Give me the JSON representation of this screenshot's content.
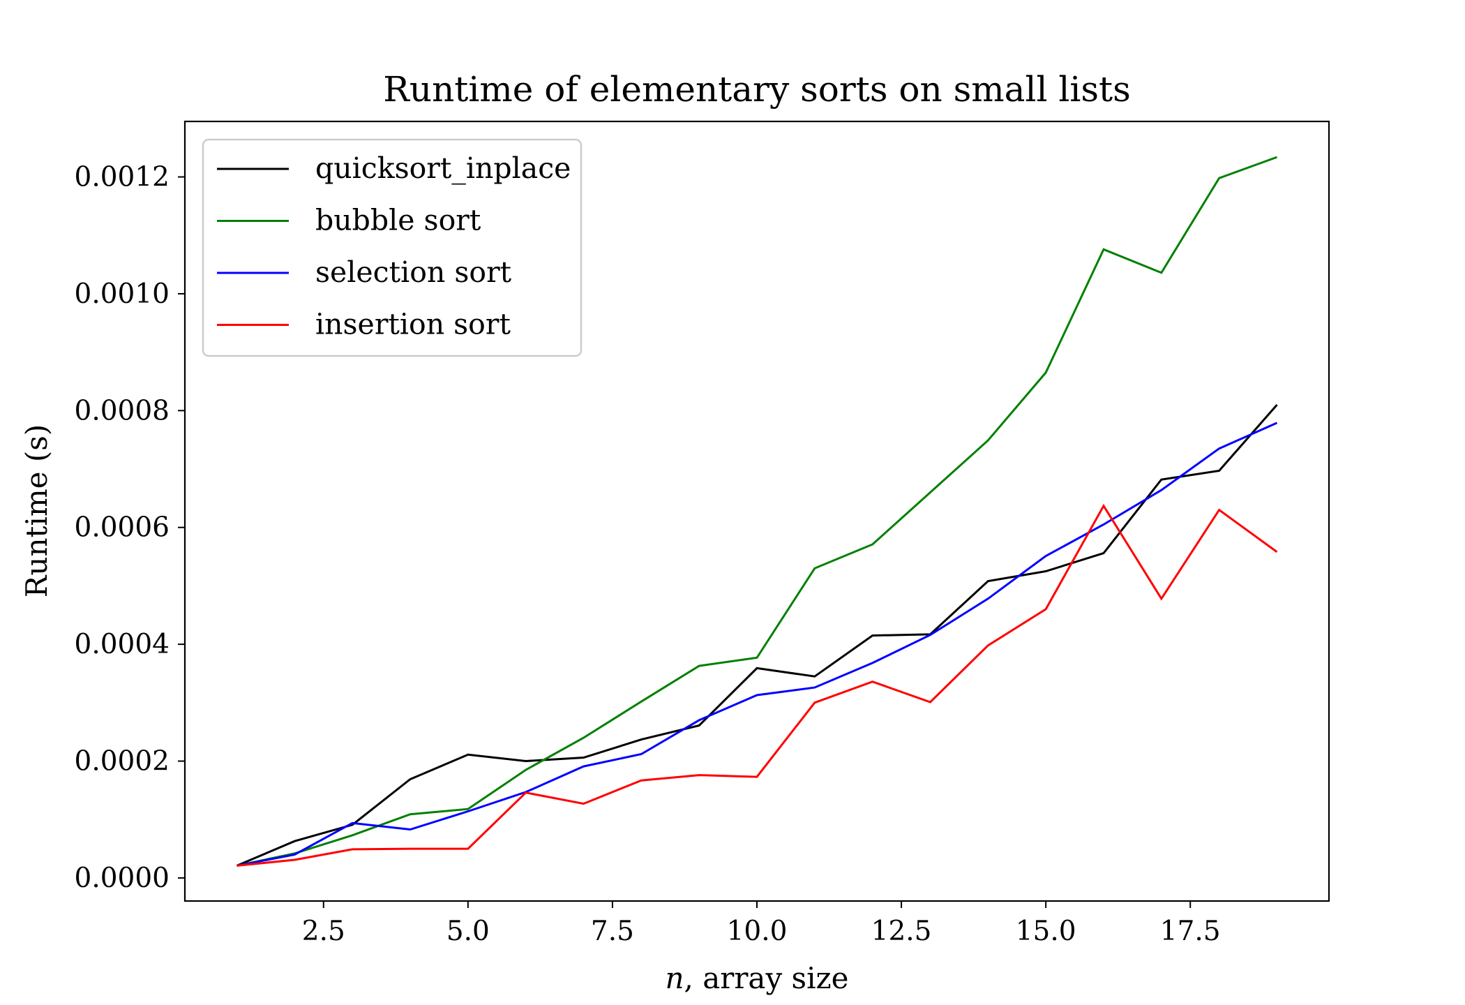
{
  "chart_data": {
    "type": "line",
    "title": "Runtime of elementary sorts on small lists",
    "xlabel_var": "n",
    "xlabel_rest": ", array size",
    "ylabel": "Runtime (s)",
    "xlim": [
      0.1,
      19.9
    ],
    "ylim": [
      -3.95e-05,
      0.001295
    ],
    "xticks": [
      2.5,
      5.0,
      7.5,
      10.0,
      12.5,
      15.0,
      17.5
    ],
    "xtick_labels": [
      "2.5",
      "5.0",
      "7.5",
      "10.0",
      "12.5",
      "15.0",
      "17.5"
    ],
    "yticks": [
      0,
      0.0002,
      0.0004,
      0.0006,
      0.0008,
      0.001,
      0.0012
    ],
    "ytick_labels": [
      "0.0000",
      "0.0002",
      "0.0004",
      "0.0006",
      "0.0008",
      "0.0010",
      "0.0012"
    ],
    "grid": false,
    "legend_position": "upper-left",
    "x": [
      1,
      2,
      3,
      4,
      5,
      6,
      7,
      8,
      9,
      10,
      11,
      12,
      13,
      14,
      15,
      16,
      17,
      18,
      19
    ],
    "series": [
      {
        "name": "quicksort_inplace",
        "color": "#000000",
        "values": [
          2.1e-05,
          6.3e-05,
          9.1e-05,
          0.000169,
          0.000211,
          0.0002,
          0.000206,
          0.000237,
          0.000261,
          0.000359,
          0.000345,
          0.000415,
          0.000417,
          0.000508,
          0.000525,
          0.000556,
          0.000682,
          0.000697,
          0.00081
        ]
      },
      {
        "name": "bubble sort",
        "color": "#008000",
        "values": [
          2.1e-05,
          4.2e-05,
          7.3e-05,
          0.000109,
          0.000118,
          0.000185,
          0.00024,
          0.000302,
          0.000363,
          0.000377,
          0.00053,
          0.000571,
          0.00066,
          0.000749,
          0.000865,
          0.001076,
          0.001036,
          0.001198,
          0.001234
        ]
      },
      {
        "name": "selection sort",
        "color": "#0000ff",
        "values": [
          2.1e-05,
          4e-05,
          9.4e-05,
          8.3e-05,
          0.000114,
          0.000147,
          0.000191,
          0.000212,
          0.00027,
          0.000313,
          0.000326,
          0.000368,
          0.000416,
          0.000478,
          0.000551,
          0.000605,
          0.000664,
          0.000735,
          0.000779
        ]
      },
      {
        "name": "insertion sort",
        "color": "#ff0000",
        "values": [
          2.1e-05,
          3.1e-05,
          4.9e-05,
          5e-05,
          5e-05,
          0.000146,
          0.000127,
          0.000167,
          0.000176,
          0.000173,
          0.0003,
          0.000336,
          0.000301,
          0.000398,
          0.00046,
          0.000637,
          0.000478,
          0.00063,
          0.000558
        ]
      }
    ]
  }
}
